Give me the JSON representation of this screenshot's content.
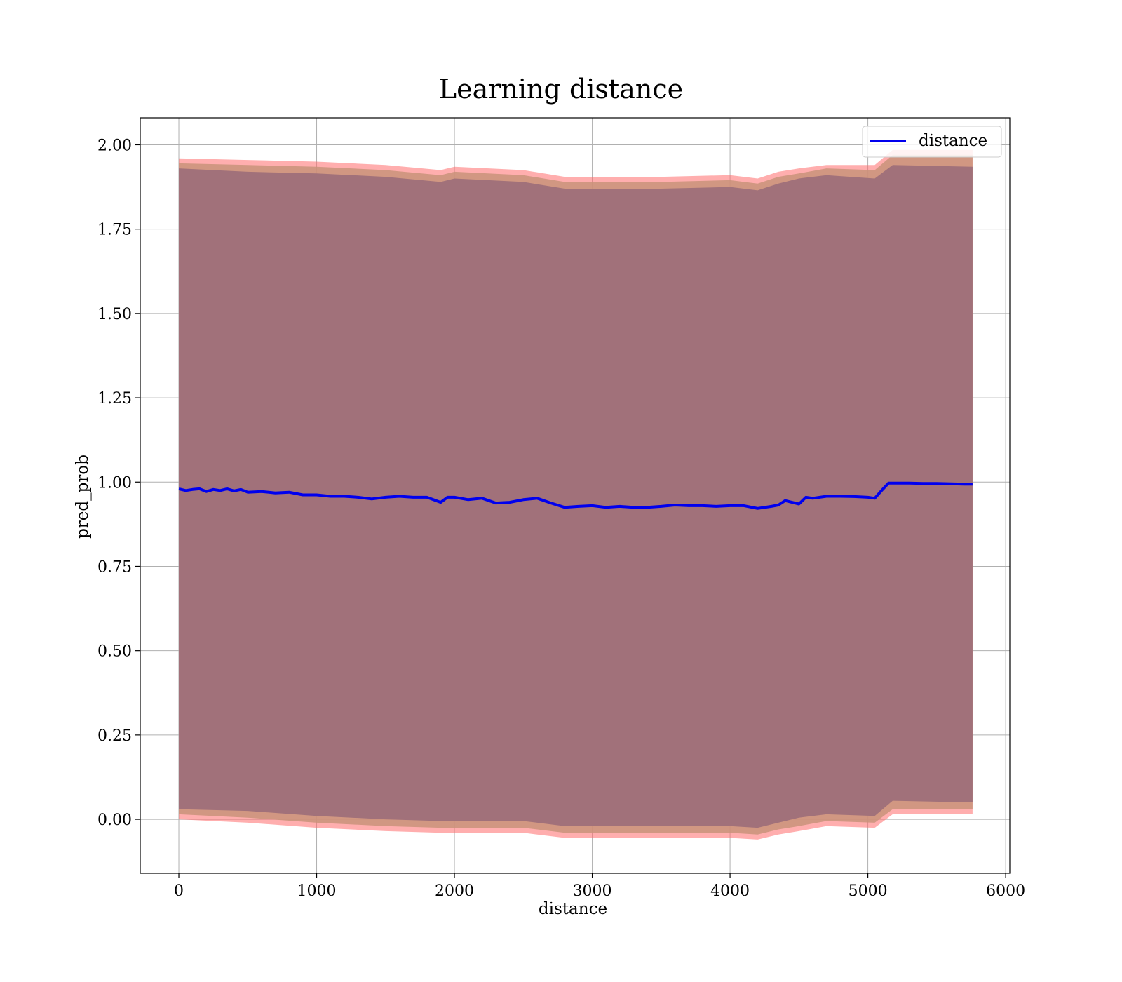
{
  "chart_data": {
    "type": "line",
    "title": "Learning distance",
    "xlabel": "distance",
    "ylabel": "pred_prob",
    "xlim": [
      -280,
      6030
    ],
    "ylim": [
      -0.16,
      2.08
    ],
    "xticks": [
      0,
      1000,
      2000,
      3000,
      4000,
      5000,
      6000
    ],
    "yticks": [
      0.0,
      0.25,
      0.5,
      0.75,
      1.0,
      1.25,
      1.5,
      1.75,
      2.0
    ],
    "xtick_labels": [
      "0",
      "1000",
      "2000",
      "3000",
      "4000",
      "5000",
      "6000"
    ],
    "ytick_labels": [
      "0.00",
      "0.25",
      "0.50",
      "0.75",
      "1.00",
      "1.25",
      "1.50",
      "1.75",
      "2.00"
    ],
    "grid": true,
    "legend_position": "top-right",
    "legend": [
      "distance"
    ],
    "colors": {
      "line": "#0000ee",
      "band_outer": "#ff6b6b",
      "band_middle": "#c9937a",
      "band_inner": "#a1717a"
    },
    "series": [
      {
        "name": "distance",
        "x": [
          0,
          50,
          100,
          150,
          200,
          250,
          300,
          350,
          400,
          450,
          500,
          600,
          700,
          800,
          900,
          1000,
          1100,
          1200,
          1300,
          1400,
          1500,
          1600,
          1700,
          1800,
          1900,
          1950,
          2000,
          2100,
          2200,
          2300,
          2400,
          2500,
          2600,
          2700,
          2800,
          2900,
          3000,
          3100,
          3200,
          3300,
          3400,
          3500,
          3600,
          3700,
          3800,
          3900,
          4000,
          4100,
          4200,
          4300,
          4350,
          4400,
          4500,
          4550,
          4600,
          4700,
          4800,
          4900,
          5000,
          5050,
          5100,
          5150,
          5200,
          5300,
          5400,
          5500,
          5600,
          5700,
          5760
        ],
        "y": [
          0.98,
          0.975,
          0.978,
          0.98,
          0.972,
          0.978,
          0.975,
          0.98,
          0.974,
          0.978,
          0.97,
          0.972,
          0.968,
          0.97,
          0.962,
          0.962,
          0.958,
          0.958,
          0.955,
          0.95,
          0.955,
          0.958,
          0.955,
          0.955,
          0.94,
          0.955,
          0.955,
          0.948,
          0.952,
          0.938,
          0.94,
          0.948,
          0.952,
          0.938,
          0.925,
          0.928,
          0.93,
          0.925,
          0.928,
          0.925,
          0.925,
          0.928,
          0.932,
          0.93,
          0.93,
          0.928,
          0.93,
          0.93,
          0.922,
          0.928,
          0.932,
          0.945,
          0.935,
          0.955,
          0.952,
          0.958,
          0.958,
          0.957,
          0.955,
          0.952,
          0.975,
          0.997,
          0.997,
          0.997,
          0.996,
          0.996,
          0.995,
          0.994,
          0.994
        ]
      }
    ],
    "bands": [
      {
        "name": "outer",
        "x": [
          0,
          500,
          1000,
          1500,
          1900,
          2000,
          2500,
          2800,
          3000,
          3500,
          4000,
          4200,
          4350,
          4500,
          4700,
          5050,
          5180,
          5760
        ],
        "upper": [
          1.96,
          1.955,
          1.95,
          1.94,
          1.925,
          1.935,
          1.925,
          1.905,
          1.905,
          1.905,
          1.91,
          1.9,
          1.92,
          1.93,
          1.94,
          1.94,
          1.985,
          1.985
        ],
        "lower": [
          0.0,
          -0.01,
          -0.025,
          -0.035,
          -0.04,
          -0.04,
          -0.04,
          -0.055,
          -0.055,
          -0.055,
          -0.055,
          -0.06,
          -0.045,
          -0.035,
          -0.02,
          -0.025,
          0.015,
          0.015
        ]
      },
      {
        "name": "middle",
        "x": [
          0,
          500,
          1000,
          1500,
          1900,
          2000,
          2500,
          2800,
          3000,
          3500,
          4000,
          4200,
          4350,
          4500,
          4700,
          5050,
          5180,
          5760
        ],
        "upper": [
          1.945,
          1.94,
          1.935,
          1.925,
          1.91,
          1.92,
          1.91,
          1.89,
          1.89,
          1.89,
          1.895,
          1.885,
          1.905,
          1.915,
          1.93,
          1.925,
          1.97,
          1.97
        ],
        "lower": [
          0.015,
          0.005,
          -0.01,
          -0.02,
          -0.025,
          -0.025,
          -0.025,
          -0.04,
          -0.04,
          -0.04,
          -0.04,
          -0.045,
          -0.03,
          -0.02,
          -0.005,
          -0.01,
          0.03,
          0.03
        ]
      },
      {
        "name": "inner",
        "x": [
          0,
          500,
          1000,
          1500,
          1900,
          2000,
          2500,
          2800,
          3000,
          3500,
          4000,
          4200,
          4350,
          4500,
          4700,
          5050,
          5180,
          5760
        ],
        "upper": [
          1.93,
          1.92,
          1.915,
          1.905,
          1.89,
          1.9,
          1.89,
          1.87,
          1.87,
          1.87,
          1.875,
          1.865,
          1.885,
          1.9,
          1.91,
          1.9,
          1.94,
          1.935
        ],
        "lower": [
          0.03,
          0.025,
          0.01,
          0.0,
          -0.005,
          -0.005,
          -0.005,
          -0.02,
          -0.02,
          -0.02,
          -0.02,
          -0.025,
          -0.01,
          0.005,
          0.015,
          0.01,
          0.055,
          0.05
        ]
      }
    ]
  }
}
